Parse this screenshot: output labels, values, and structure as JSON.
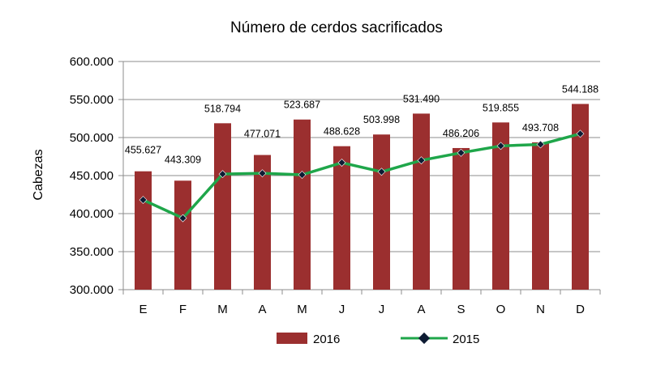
{
  "chart_data": {
    "type": "bar",
    "title": "Número de cerdos sacrificados",
    "xlabel": "",
    "ylabel": "Cabezas",
    "ylim": [
      300000,
      600000
    ],
    "yticks": [
      300000,
      350000,
      400000,
      450000,
      500000,
      550000,
      600000
    ],
    "ytick_labels": [
      "300.000",
      "350.000",
      "400.000",
      "450.000",
      "500.000",
      "550.000",
      "600.000"
    ],
    "grid": true,
    "legend_position": "bottom",
    "categories": [
      "E",
      "F",
      "M",
      "A",
      "M",
      "J",
      "J",
      "A",
      "S",
      "O",
      "N",
      "D"
    ],
    "series": [
      {
        "name": "2016",
        "kind": "bar",
        "color": "#9b2f2f",
        "values": [
          455627,
          443309,
          518794,
          477071,
          523687,
          488628,
          503998,
          531490,
          486206,
          519855,
          493708,
          544188
        ],
        "data_labels": [
          "455.627",
          "443.309",
          "518.794",
          "477.071",
          "523.687",
          "488.628",
          "503.998",
          "531.490",
          "486.206",
          "519.855",
          "493.708",
          "544.188"
        ]
      },
      {
        "name": "2015",
        "kind": "line",
        "color": "#1fa64a",
        "marker_color": "#0d1b33",
        "values": [
          418000,
          394000,
          452000,
          453000,
          451000,
          467000,
          455000,
          470000,
          480000,
          489000,
          491000,
          505000
        ]
      }
    ]
  }
}
